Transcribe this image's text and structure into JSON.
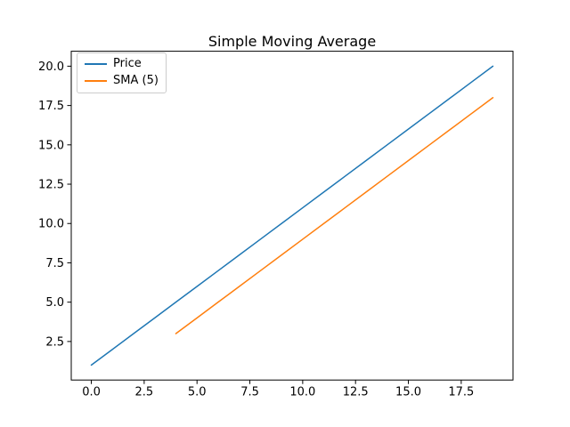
{
  "chart_data": {
    "type": "line",
    "title": "Simple Moving Average",
    "xlabel": "",
    "ylabel": "",
    "xlim": [
      -0.95,
      19.95
    ],
    "ylim": [
      0.05,
      20.95
    ],
    "grid": false,
    "background_color": "#ffffff",
    "axes_color": "#000000",
    "legend": {
      "position": "upper-left",
      "border_color": "#cccccc",
      "background": "#ffffff"
    },
    "x_ticks": {
      "values": [
        0,
        2.5,
        5,
        7.5,
        10,
        12.5,
        15,
        17.5
      ],
      "labels": [
        "0.0",
        "2.5",
        "5.0",
        "7.5",
        "10.0",
        "12.5",
        "15.0",
        "17.5"
      ]
    },
    "y_ticks": {
      "values": [
        2.5,
        5,
        7.5,
        10,
        12.5,
        15,
        17.5,
        20
      ],
      "labels": [
        "2.5",
        "5.0",
        "7.5",
        "10.0",
        "12.5",
        "15.0",
        "17.5",
        "20.0"
      ]
    },
    "series": [
      {
        "name": "Price",
        "color": "#1f77b4",
        "x": [
          0,
          1,
          2,
          3,
          4,
          5,
          6,
          7,
          8,
          9,
          10,
          11,
          12,
          13,
          14,
          15,
          16,
          17,
          18,
          19
        ],
        "values": [
          1,
          2,
          3,
          4,
          5,
          6,
          7,
          8,
          9,
          10,
          11,
          12,
          13,
          14,
          15,
          16,
          17,
          18,
          19,
          20
        ]
      },
      {
        "name": "SMA (5)",
        "color": "#ff7f0e",
        "x": [
          4,
          5,
          6,
          7,
          8,
          9,
          10,
          11,
          12,
          13,
          14,
          15,
          16,
          17,
          18,
          19
        ],
        "values": [
          3,
          4,
          5,
          6,
          7,
          8,
          9,
          10,
          11,
          12,
          13,
          14,
          15,
          16,
          17,
          18
        ]
      }
    ]
  }
}
